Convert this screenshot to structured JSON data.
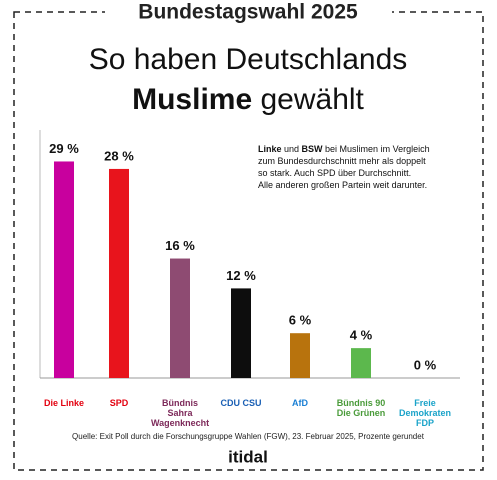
{
  "chart_data": {
    "type": "bar",
    "header": "Bundestagswahl 2025",
    "title": "So haben Deutschlands",
    "title_bold": "Muslime",
    "title_rest": "gewählt",
    "annotation": [
      [
        {
          "text": "Linke",
          "bold": true
        },
        {
          "text": " und "
        },
        {
          "text": "BSW",
          "bold": true
        },
        {
          "text": " bei Muslimen im Vergleich"
        }
      ],
      [
        {
          "text": "zum Bundesdurchschnitt mehr als doppelt"
        }
      ],
      [
        {
          "text": "so stark. Auch SPD über Durchschnitt."
        }
      ],
      [
        {
          "text": "Alle anderen großen Partein weit darunter."
        }
      ]
    ],
    "categories": [
      "Die Linke",
      "SPD",
      "Bündnis Sahra Wagenknecht",
      "CDU CSU",
      "AfD",
      "Bündnis 90 Die Grünen",
      "Freie Demokraten FDP"
    ],
    "label_colors": [
      "#e3000f",
      "#e3000f",
      "#7d2a5a",
      "#1a5fb4",
      "#1a7fd4",
      "#4a9b3a",
      "#1aa3c9"
    ],
    "values": [
      29,
      28,
      16,
      12,
      6,
      4,
      0
    ],
    "value_labels": [
      "29 %",
      "28 %",
      "16 %",
      "12 %",
      "6 %",
      "4 %",
      "0 %"
    ],
    "colors": [
      "#c8009e",
      "#e8141c",
      "#8e4b72",
      "#0d0d0d",
      "#b8730d",
      "#5cb84d",
      "#f2d800"
    ],
    "ylim": [
      0,
      30
    ],
    "source": "Quelle: Exit Poll durch die Forschungsgruppe Wahlen (FGW), 23. Februar 2025, Prozente gerundet",
    "brand": "itidal"
  }
}
